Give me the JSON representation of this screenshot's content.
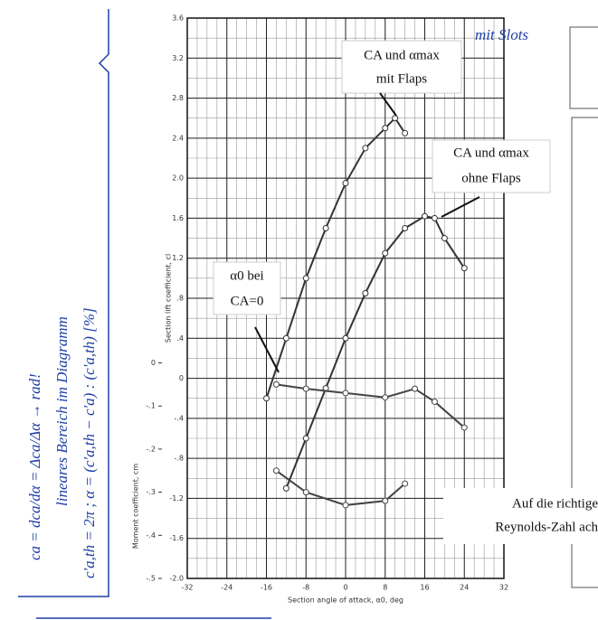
{
  "notes": [
    "ca = dca/dα = Δca/Δα → rad!",
    "lineares Bereich im Diagramm",
    "c'a,th = 2π ; α = (c'a,th − c'a) : (c'a,th) [%]",
    "mit Slots"
  ],
  "annotations": [
    "CA und αmax",
    "mit Flaps",
    "CA und αmax",
    "ohne Flaps",
    "α0 bei",
    "CA=0",
    "Auf die richtige",
    "Reynolds-Zahl ach"
  ],
  "chart_data": {
    "type": "line",
    "xlabel": "Section angle of attack, α0, deg",
    "ylabel": "Section lift coefficient, cl",
    "y2label": "Moment coefficient, cm",
    "xlim": [
      -32,
      32
    ],
    "xticks": [
      -32,
      -24,
      -16,
      -8,
      0,
      8,
      16,
      24,
      32
    ],
    "ylim": [
      -2.0,
      3.6
    ],
    "yticks": [
      {
        "value": -2.0,
        "label": "-2.0"
      },
      -1.6,
      -1.2,
      {
        "value": -0.8,
        "label": "-.8"
      },
      {
        "value": -0.4,
        "label": "-.4"
      },
      0,
      {
        "value": 0.4,
        "label": ".4"
      },
      {
        "value": 0.8,
        "label": ".8"
      },
      1.2,
      1.6,
      {
        "value": 2.0,
        "label": "2.0"
      },
      2.4,
      2.8,
      3.2,
      3.6
    ],
    "y2lim": [
      -0.5,
      0.8
    ],
    "y2ticks": [
      {
        "value": -0.5,
        "label": "-.5"
      },
      {
        "value": -0.4,
        "label": "-.4"
      },
      {
        "value": -0.3,
        "label": "-.3"
      },
      {
        "value": -0.2,
        "label": "-.2"
      },
      {
        "value": -0.1,
        "label": "-.1"
      },
      0
    ],
    "grid": true,
    "series": [
      {
        "color": "#333333",
        "x": [
          -16,
          -12,
          -8,
          -4,
          0,
          4,
          8,
          10,
          12
        ],
        "values": [
          -0.2,
          0.4,
          1.0,
          1.5,
          1.95,
          2.3,
          2.5,
          2.6,
          2.45
        ]
      },
      {
        "color": "#333333",
        "x": [
          -12,
          -8,
          -4,
          0,
          4,
          8,
          12,
          16,
          18,
          20,
          24
        ],
        "values": [
          -1.1,
          -0.6,
          -0.1,
          0.4,
          0.85,
          1.25,
          1.5,
          1.62,
          1.6,
          1.4,
          1.1
        ]
      },
      {
        "color": "#444444",
        "axis": "y2",
        "x": [
          -14,
          -8,
          0,
          8,
          14,
          18,
          24
        ],
        "values": [
          -0.05,
          -0.06,
          -0.07,
          -0.08,
          -0.06,
          -0.09,
          -0.15
        ]
      },
      {
        "color": "#444444",
        "axis": "y2",
        "x": [
          -14,
          -8,
          0,
          8,
          12
        ],
        "values": [
          -0.25,
          -0.3,
          -0.33,
          -0.32,
          -0.28
        ]
      }
    ]
  }
}
